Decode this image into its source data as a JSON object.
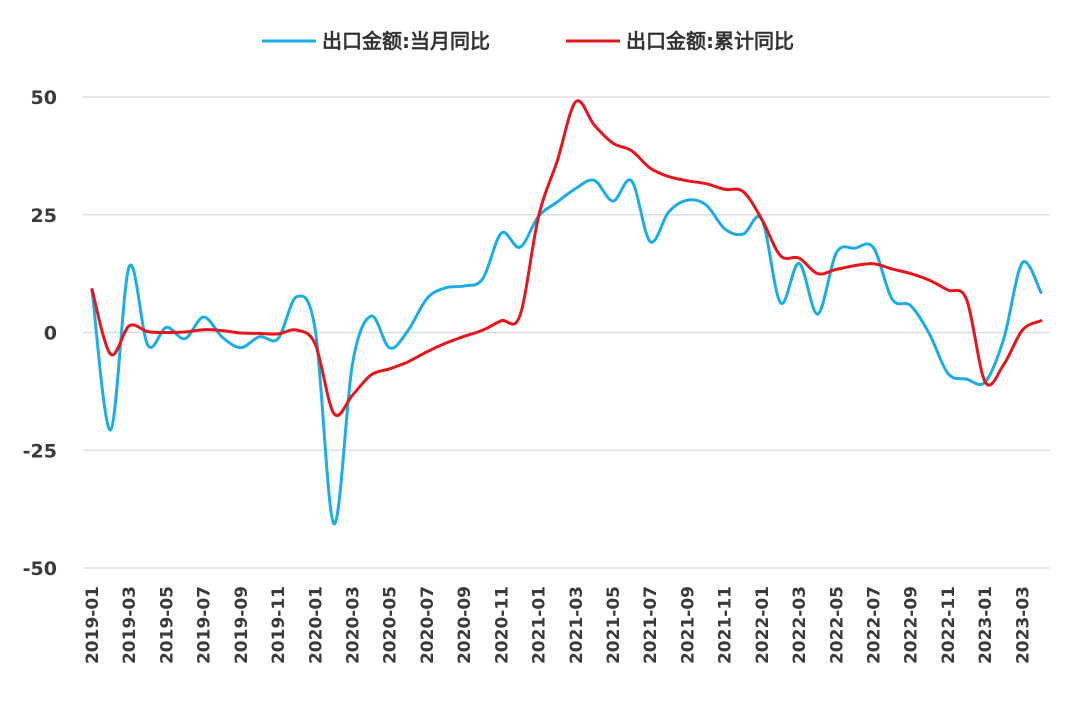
{
  "chart_data": {
    "type": "line",
    "title": "",
    "xlabel": "",
    "ylabel": "",
    "ylim": [
      -50,
      50
    ],
    "yticks": [
      50,
      25,
      0,
      -25,
      -50
    ],
    "grid": true,
    "legend_position": "top-center",
    "x": [
      "2019-01",
      "2019-02",
      "2019-03",
      "2019-04",
      "2019-05",
      "2019-06",
      "2019-07",
      "2019-08",
      "2019-09",
      "2019-10",
      "2019-11",
      "2019-12",
      "2020-01",
      "2020-02",
      "2020-03",
      "2020-04",
      "2020-05",
      "2020-06",
      "2020-07",
      "2020-08",
      "2020-09",
      "2020-10",
      "2020-11",
      "2020-12",
      "2021-01",
      "2021-02",
      "2021-03",
      "2021-04",
      "2021-05",
      "2021-06",
      "2021-07",
      "2021-08",
      "2021-09",
      "2021-10",
      "2021-11",
      "2021-12",
      "2022-01",
      "2022-02",
      "2022-03",
      "2022-04",
      "2022-05",
      "2022-06",
      "2022-07",
      "2022-08",
      "2022-09",
      "2022-10",
      "2022-11",
      "2022-12",
      "2023-01",
      "2023-02",
      "2023-03",
      "2023-04"
    ],
    "x_tick_labels": [
      "2019-01",
      "2019-03",
      "2019-05",
      "2019-07",
      "2019-09",
      "2019-11",
      "2020-01",
      "2020-03",
      "2020-05",
      "2020-07",
      "2020-09",
      "2020-11",
      "2021-01",
      "2021-03",
      "2021-05",
      "2021-07",
      "2021-09",
      "2021-11",
      "2022-01",
      "2022-03",
      "2022-05",
      "2022-07",
      "2022-09",
      "2022-11",
      "2023-01",
      "2023-03"
    ],
    "series": [
      {
        "name": "出口金额:当月同比",
        "color": "#1aaee5",
        "values": [
          9.1,
          -20.7,
          14.0,
          -2.7,
          1.1,
          -1.3,
          3.3,
          -1.0,
          -3.2,
          -0.9,
          -1.3,
          7.6,
          0.5,
          -40.6,
          -6.6,
          3.5,
          -3.3,
          0.5,
          7.2,
          9.5,
          9.9,
          11.4,
          21.1,
          18.1,
          24.7,
          27.7,
          30.6,
          32.3,
          27.9,
          32.2,
          19.3,
          25.6,
          28.1,
          27.1,
          22.0,
          20.9,
          24.0,
          6.3,
          14.7,
          3.9,
          16.9,
          17.9,
          18.0,
          7.1,
          5.7,
          -0.3,
          -8.7,
          -9.9,
          -10.5,
          -1.3,
          14.8,
          8.5
        ]
      },
      {
        "name": "出口金额:累计同比",
        "color": "#e5161d",
        "values": [
          9.1,
          -4.6,
          1.4,
          0.2,
          0.0,
          0.1,
          0.6,
          0.4,
          -0.1,
          -0.2,
          -0.3,
          0.5,
          -2.5,
          -17.2,
          -13.3,
          -9.0,
          -7.7,
          -6.2,
          -4.1,
          -2.3,
          -0.8,
          0.5,
          2.5,
          3.6,
          24.7,
          36.4,
          49.0,
          44.0,
          40.2,
          38.6,
          34.9,
          33.1,
          32.2,
          31.6,
          30.4,
          29.9,
          24.0,
          16.3,
          15.8,
          12.5,
          13.4,
          14.2,
          14.6,
          13.5,
          12.5,
          11.1,
          9.0,
          7.0,
          -10.5,
          -6.8,
          0.5,
          2.5
        ]
      }
    ]
  }
}
